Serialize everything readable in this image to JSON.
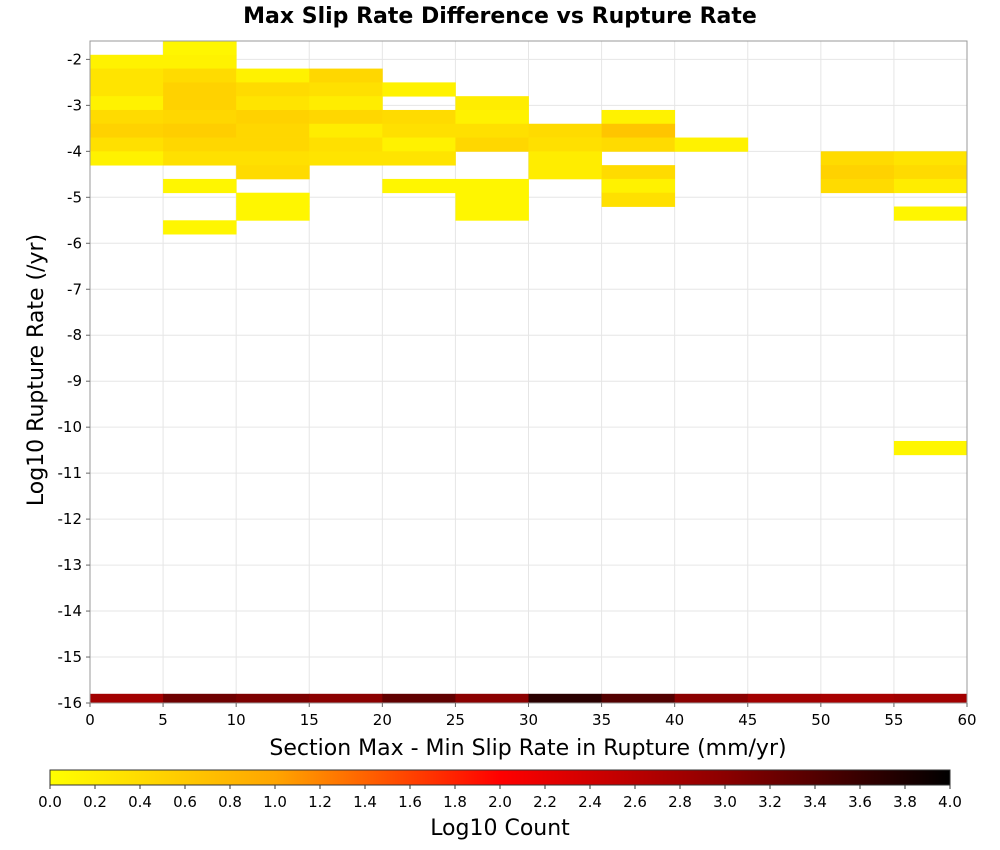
{
  "chart_data": {
    "type": "heatmap",
    "title": "Max Slip Rate Difference vs Rupture Rate",
    "xlabel": "Section Max - Min Slip Rate in Rupture (mm/yr)",
    "ylabel": "Log10 Rupture Rate (/yr)",
    "xlim": [
      0,
      60
    ],
    "ylim": [
      -16,
      -1.6
    ],
    "x_ticks": [
      "0",
      "5",
      "10",
      "15",
      "20",
      "25",
      "30",
      "35",
      "40",
      "45",
      "50",
      "55",
      "60"
    ],
    "y_ticks": [
      "-2",
      "-3",
      "-4",
      "-5",
      "-6",
      "-7",
      "-8",
      "-9",
      "-10",
      "-11",
      "-12",
      "-13",
      "-14",
      "-15",
      "-16"
    ],
    "x_bin_width": 5,
    "y_bin_height": 0.3,
    "grid": true,
    "colorbar": {
      "label": "Log10 Count",
      "range": [
        0.0,
        4.0
      ],
      "tick_labels": [
        "0.0",
        "0.2",
        "0.4",
        "0.6",
        "0.8",
        "1.0",
        "1.2",
        "1.4",
        "1.6",
        "1.8",
        "2.0",
        "2.2",
        "2.4",
        "2.6",
        "2.8",
        "3.0",
        "3.2",
        "3.4",
        "3.6",
        "3.8",
        "4.0"
      ],
      "colors": [
        "#ffff00",
        "#ffa500",
        "#ff0000",
        "#8b0000",
        "#000000"
      ]
    },
    "cells": [
      {
        "x": 5,
        "y": -1.75,
        "v": 0.1
      },
      {
        "x": 0,
        "y": -2.05,
        "v": 0.15
      },
      {
        "x": 5,
        "y": -2.05,
        "v": 0.15
      },
      {
        "x": 0,
        "y": -2.35,
        "v": 0.3
      },
      {
        "x": 5,
        "y": -2.35,
        "v": 0.4
      },
      {
        "x": 10,
        "y": -2.35,
        "v": 0.15
      },
      {
        "x": 15,
        "y": -2.35,
        "v": 0.45
      },
      {
        "x": 0,
        "y": -2.65,
        "v": 0.3
      },
      {
        "x": 5,
        "y": -2.65,
        "v": 0.5
      },
      {
        "x": 10,
        "y": -2.65,
        "v": 0.4
      },
      {
        "x": 15,
        "y": -2.65,
        "v": 0.35
      },
      {
        "x": 20,
        "y": -2.65,
        "v": 0.15
      },
      {
        "x": 0,
        "y": -2.95,
        "v": 0.15
      },
      {
        "x": 5,
        "y": -2.95,
        "v": 0.5
      },
      {
        "x": 10,
        "y": -2.95,
        "v": 0.3
      },
      {
        "x": 15,
        "y": -2.95,
        "v": 0.2
      },
      {
        "x": 25,
        "y": -2.95,
        "v": 0.2
      },
      {
        "x": 0,
        "y": -3.25,
        "v": 0.4
      },
      {
        "x": 5,
        "y": -3.25,
        "v": 0.45
      },
      {
        "x": 10,
        "y": -3.25,
        "v": 0.5
      },
      {
        "x": 15,
        "y": -3.25,
        "v": 0.45
      },
      {
        "x": 20,
        "y": -3.25,
        "v": 0.4
      },
      {
        "x": 25,
        "y": -3.25,
        "v": 0.15
      },
      {
        "x": 35,
        "y": -3.25,
        "v": 0.15
      },
      {
        "x": 0,
        "y": -3.55,
        "v": 0.5
      },
      {
        "x": 5,
        "y": -3.55,
        "v": 0.55
      },
      {
        "x": 10,
        "y": -3.55,
        "v": 0.45
      },
      {
        "x": 15,
        "y": -3.55,
        "v": 0.2
      },
      {
        "x": 20,
        "y": -3.55,
        "v": 0.35
      },
      {
        "x": 25,
        "y": -3.55,
        "v": 0.35
      },
      {
        "x": 30,
        "y": -3.55,
        "v": 0.4
      },
      {
        "x": 35,
        "y": -3.55,
        "v": 0.65
      },
      {
        "x": 0,
        "y": -3.85,
        "v": 0.35
      },
      {
        "x": 5,
        "y": -3.85,
        "v": 0.45
      },
      {
        "x": 10,
        "y": -3.85,
        "v": 0.45
      },
      {
        "x": 15,
        "y": -3.85,
        "v": 0.35
      },
      {
        "x": 20,
        "y": -3.85,
        "v": 0.15
      },
      {
        "x": 25,
        "y": -3.85,
        "v": 0.45
      },
      {
        "x": 30,
        "y": -3.85,
        "v": 0.35
      },
      {
        "x": 35,
        "y": -3.85,
        "v": 0.4
      },
      {
        "x": 40,
        "y": -3.85,
        "v": 0.15
      },
      {
        "x": 0,
        "y": -4.15,
        "v": 0.15
      },
      {
        "x": 5,
        "y": -4.15,
        "v": 0.35
      },
      {
        "x": 10,
        "y": -4.15,
        "v": 0.35
      },
      {
        "x": 15,
        "y": -4.15,
        "v": 0.3
      },
      {
        "x": 20,
        "y": -4.15,
        "v": 0.3
      },
      {
        "x": 30,
        "y": -4.15,
        "v": 0.2
      },
      {
        "x": 50,
        "y": -4.15,
        "v": 0.4
      },
      {
        "x": 55,
        "y": -4.15,
        "v": 0.3
      },
      {
        "x": 10,
        "y": -4.45,
        "v": 0.4
      },
      {
        "x": 30,
        "y": -4.45,
        "v": 0.2
      },
      {
        "x": 35,
        "y": -4.45,
        "v": 0.4
      },
      {
        "x": 50,
        "y": -4.45,
        "v": 0.5
      },
      {
        "x": 55,
        "y": -4.45,
        "v": 0.4
      },
      {
        "x": 5,
        "y": -4.75,
        "v": 0.1
      },
      {
        "x": 20,
        "y": -4.75,
        "v": 0.1
      },
      {
        "x": 25,
        "y": -4.75,
        "v": 0.1
      },
      {
        "x": 35,
        "y": -4.75,
        "v": 0.15
      },
      {
        "x": 50,
        "y": -4.75,
        "v": 0.4
      },
      {
        "x": 55,
        "y": -4.75,
        "v": 0.2
      },
      {
        "x": 10,
        "y": -5.05,
        "v": 0.1
      },
      {
        "x": 25,
        "y": -5.05,
        "v": 0.1
      },
      {
        "x": 35,
        "y": -5.05,
        "v": 0.35
      },
      {
        "x": 10,
        "y": -5.35,
        "v": 0.1
      },
      {
        "x": 25,
        "y": -5.35,
        "v": 0.1
      },
      {
        "x": 55,
        "y": -5.35,
        "v": 0.1
      },
      {
        "x": 5,
        "y": -5.65,
        "v": 0.1
      },
      {
        "x": 55,
        "y": -10.45,
        "v": 0.1
      },
      {
        "x": 0,
        "y": -15.95,
        "v": 2.8
      },
      {
        "x": 5,
        "y": -15.95,
        "v": 3.2
      },
      {
        "x": 10,
        "y": -15.95,
        "v": 3.1
      },
      {
        "x": 15,
        "y": -15.95,
        "v": 3.0
      },
      {
        "x": 20,
        "y": -15.95,
        "v": 3.3
      },
      {
        "x": 25,
        "y": -15.95,
        "v": 3.0
      },
      {
        "x": 30,
        "y": -15.95,
        "v": 3.7
      },
      {
        "x": 35,
        "y": -15.95,
        "v": 3.4
      },
      {
        "x": 40,
        "y": -15.95,
        "v": 3.0
      },
      {
        "x": 45,
        "y": -15.95,
        "v": 2.8
      },
      {
        "x": 50,
        "y": -15.95,
        "v": 2.75
      },
      {
        "x": 55,
        "y": -15.95,
        "v": 2.8
      }
    ]
  }
}
